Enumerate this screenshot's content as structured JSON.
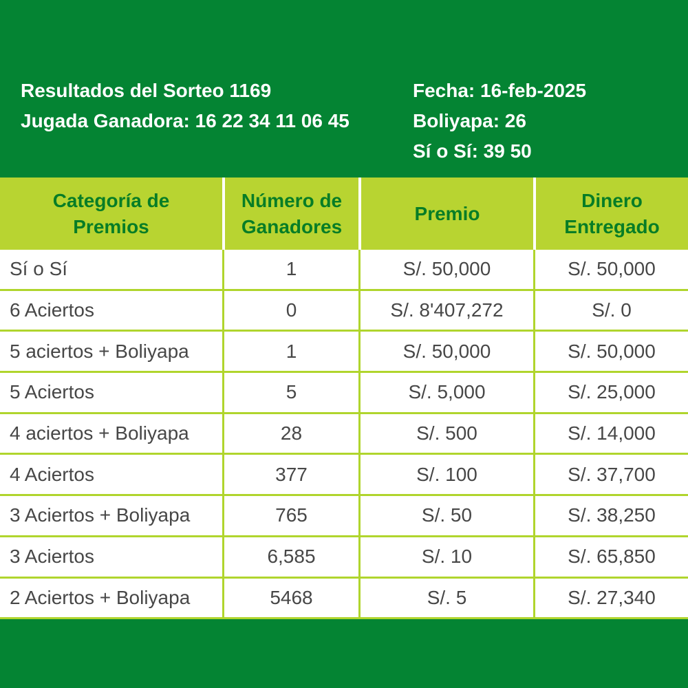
{
  "colors": {
    "band_green": "#048433",
    "table_header_bg": "#b8d431",
    "table_header_text": "#077d26",
    "grid_border_green": "#b0d52d",
    "row_text_gray": "#474747",
    "header_text_white": "#ffffff"
  },
  "header": {
    "sorteo_title": "Resultados del Sorteo 1169",
    "jugada_ganadora": "Jugada Ganadora: 16 22 34 11 06 45",
    "fecha": "Fecha: 16-feb-2025",
    "boliyapa": "Boliyapa: 26",
    "si_o_si": "Sí o Sí: 39 50"
  },
  "table": {
    "columns": [
      "Categoría de Premios",
      "Número de Ganadores",
      "Premio",
      "Dinero Entregado"
    ],
    "rows": [
      [
        "Sí o Sí",
        "1",
        "S/. 50,000",
        "S/. 50,000"
      ],
      [
        "6 Aciertos",
        "0",
        "S/. 8'407,272",
        "S/. 0"
      ],
      [
        "5 aciertos + Boliyapa",
        "1",
        "S/. 50,000",
        "S/. 50,000"
      ],
      [
        "5 Aciertos",
        "5",
        "S/. 5,000",
        "S/. 25,000"
      ],
      [
        "4 aciertos + Boliyapa",
        "28",
        "S/. 500",
        "S/. 14,000"
      ],
      [
        "4 Aciertos",
        "377",
        "S/. 100",
        "S/. 37,700"
      ],
      [
        "3 Aciertos + Boliyapa",
        "765",
        "S/. 50",
        "S/. 38,250"
      ],
      [
        "3 Aciertos",
        "6,585",
        "S/. 10",
        "S/. 65,850"
      ],
      [
        "2 Aciertos + Boliyapa",
        "5468",
        "S/. 5",
        "S/. 27,340"
      ]
    ]
  }
}
